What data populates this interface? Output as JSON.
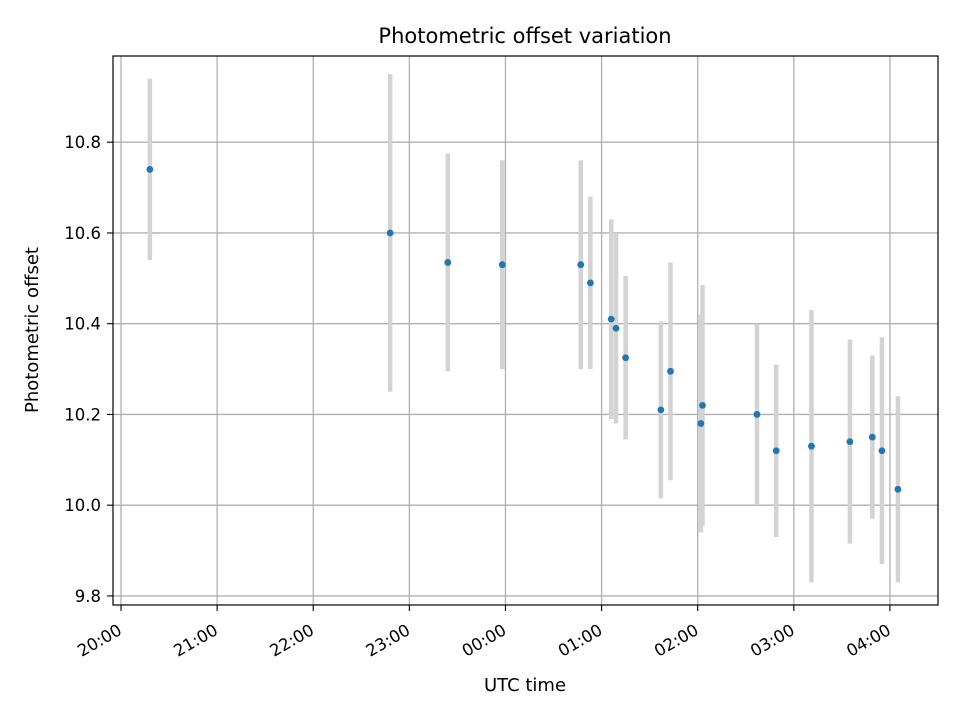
{
  "chart_data": {
    "type": "scatter",
    "title": "Photometric offset variation",
    "xlabel": "UTC time",
    "ylabel": "Photometric offset",
    "x_ticks": [
      "20:00",
      "21:00",
      "22:00",
      "23:00",
      "00:00",
      "01:00",
      "02:00",
      "03:00",
      "04:00"
    ],
    "y_ticks": [
      "9.8",
      "10.0",
      "10.2",
      "10.4",
      "10.6",
      "10.8"
    ],
    "xlim": [
      "19:55",
      "04:30"
    ],
    "ylim": [
      9.78,
      10.99
    ],
    "grid": true,
    "colors": {
      "point": "#1f77b4",
      "errorbar": "#d3d3d3",
      "grid": "#b0b0b0"
    },
    "points": [
      {
        "t": "20:18",
        "y": 10.74,
        "err": 0.2
      },
      {
        "t": "22:48",
        "y": 10.6,
        "err": 0.35
      },
      {
        "t": "23:24",
        "y": 10.535,
        "err": 0.24
      },
      {
        "t": "23:58",
        "y": 10.53,
        "err": 0.23
      },
      {
        "t": "00:47",
        "y": 10.53,
        "err": 0.23
      },
      {
        "t": "00:53",
        "y": 10.49,
        "err": 0.19
      },
      {
        "t": "01:06",
        "y": 10.41,
        "err": 0.22
      },
      {
        "t": "01:09",
        "y": 10.39,
        "err": 0.21
      },
      {
        "t": "01:15",
        "y": 10.325,
        "err": 0.18
      },
      {
        "t": "01:37",
        "y": 10.21,
        "err": 0.195
      },
      {
        "t": "01:43",
        "y": 10.295,
        "err": 0.24
      },
      {
        "t": "02:02",
        "y": 10.18,
        "err": 0.24
      },
      {
        "t": "02:03",
        "y": 10.22,
        "err": 0.265
      },
      {
        "t": "02:37",
        "y": 10.2,
        "err": 0.2
      },
      {
        "t": "02:49",
        "y": 10.12,
        "err": 0.19
      },
      {
        "t": "03:11",
        "y": 10.13,
        "err": 0.3
      },
      {
        "t": "03:35",
        "y": 10.14,
        "err": 0.225
      },
      {
        "t": "03:49",
        "y": 10.15,
        "err": 0.18
      },
      {
        "t": "03:55",
        "y": 10.12,
        "err": 0.25
      },
      {
        "t": "04:05",
        "y": 10.035,
        "err": 0.205
      }
    ]
  }
}
